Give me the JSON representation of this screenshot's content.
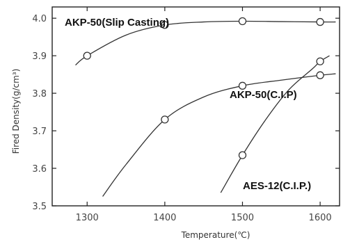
{
  "chart_data": {
    "type": "line",
    "xlabel": "Temperature(℃)",
    "ylabel": "Fired Density(g/cm³)",
    "xlim": [
      1255,
      1625
    ],
    "ylim": [
      3.5,
      4.03
    ],
    "xticks": [
      1300,
      1400,
      1500,
      1600
    ],
    "yticks": [
      3.5,
      3.6,
      3.7,
      3.8,
      3.9,
      4.0
    ],
    "xtick_labels": [
      "1300",
      "1400",
      "1500",
      "1600"
    ],
    "ytick_labels": [
      "3.5",
      "3.6",
      "3.7",
      "3.8",
      "3.9",
      "4.0"
    ],
    "series": [
      {
        "name": "AKP-50(Slip Casting)",
        "points": [
          [
            1300,
            3.9
          ],
          [
            1400,
            3.982
          ],
          [
            1500,
            3.992
          ],
          [
            1600,
            3.99
          ]
        ],
        "curve": [
          [
            1285,
            3.875
          ],
          [
            1300,
            3.9
          ],
          [
            1350,
            3.955
          ],
          [
            1400,
            3.982
          ],
          [
            1450,
            3.99
          ],
          [
            1500,
            3.992
          ],
          [
            1550,
            3.991
          ],
          [
            1600,
            3.99
          ],
          [
            1620,
            3.99
          ]
        ]
      },
      {
        "name": "AKP-50(C.I.P)",
        "points": [
          [
            1400,
            3.73
          ],
          [
            1500,
            3.82
          ],
          [
            1600,
            3.848
          ]
        ],
        "curve": [
          [
            1320,
            3.525
          ],
          [
            1350,
            3.61
          ],
          [
            1400,
            3.73
          ],
          [
            1450,
            3.79
          ],
          [
            1500,
            3.82
          ],
          [
            1550,
            3.835
          ],
          [
            1600,
            3.848
          ],
          [
            1620,
            3.852
          ]
        ]
      },
      {
        "name": "AES-12(C.I.P.)",
        "points": [
          [
            1500,
            3.635
          ],
          [
            1600,
            3.885
          ]
        ],
        "curve": [
          [
            1472,
            3.535
          ],
          [
            1500,
            3.635
          ],
          [
            1530,
            3.73
          ],
          [
            1560,
            3.81
          ],
          [
            1590,
            3.865
          ],
          [
            1600,
            3.885
          ],
          [
            1612,
            3.9
          ]
        ]
      }
    ]
  }
}
